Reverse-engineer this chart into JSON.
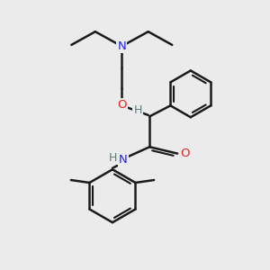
{
  "bg_color": "#ebebeb",
  "bond_color": "#1a1a1a",
  "N_color": "#2020ee",
  "O_color": "#ee2020",
  "H_color": "#607878",
  "bond_width": 1.8,
  "figsize": [
    3.0,
    3.0
  ],
  "dpi": 100,
  "xlim": [
    0,
    10
  ],
  "ylim": [
    0,
    10
  ]
}
